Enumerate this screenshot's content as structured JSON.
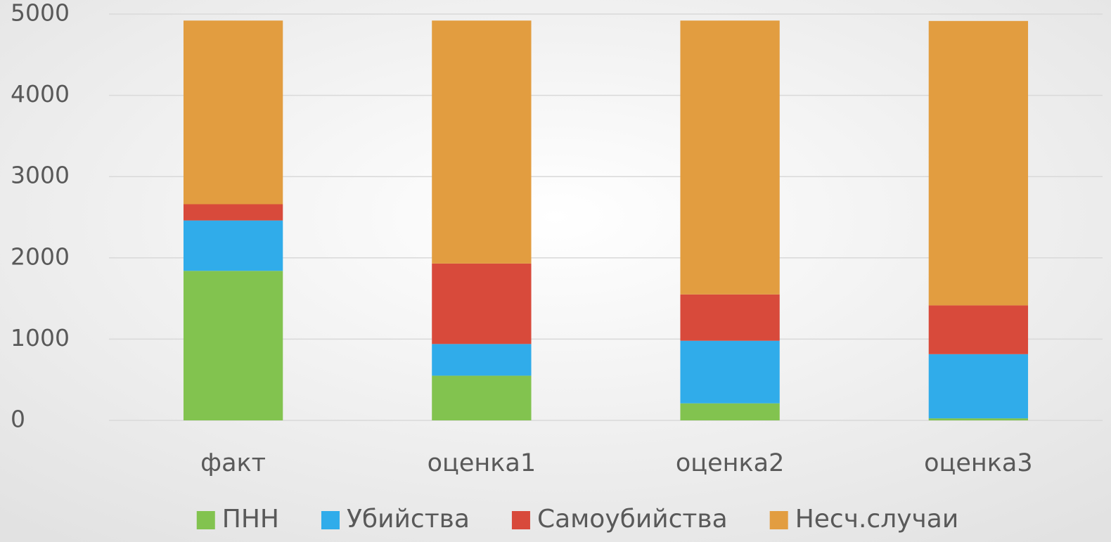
{
  "chart_data": {
    "type": "stacked_bar",
    "categories": [
      "факт",
      "оценка1",
      "оценка2",
      "оценка3"
    ],
    "series": [
      {
        "name": "ПНН",
        "color": "#82c34f",
        "values": [
          1840,
          550,
          210,
          25
        ]
      },
      {
        "name": "Убийства",
        "color": "#30acea",
        "values": [
          620,
          390,
          770,
          790
        ]
      },
      {
        "name": "Самоубийства",
        "color": "#d84a3b",
        "values": [
          200,
          990,
          570,
          600
        ]
      },
      {
        "name": "Несч.случаи",
        "color": "#e29d40",
        "values": [
          2260,
          2990,
          3370,
          3500
        ]
      }
    ],
    "ylim": [
      0,
      5000
    ],
    "yticks": [
      0,
      1000,
      2000,
      3000,
      4000,
      5000
    ],
    "grid": true,
    "legend": "bottom"
  }
}
